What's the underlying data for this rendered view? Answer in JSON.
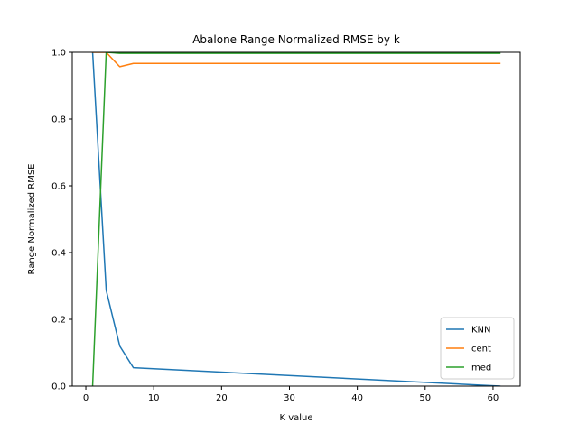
{
  "chart_data": {
    "type": "line",
    "title": "Abalone Range Normalized RMSE by k",
    "xlabel": "K value",
    "ylabel": "Range Normalized RMSE",
    "xlim": [
      -2,
      64
    ],
    "ylim": [
      0,
      1.0
    ],
    "xticks": [
      0,
      10,
      20,
      30,
      40,
      50,
      60
    ],
    "yticks": [
      0.0,
      0.2,
      0.4,
      0.6,
      0.8,
      1.0
    ],
    "xtick_labels": [
      "0",
      "10",
      "20",
      "30",
      "40",
      "50",
      "60"
    ],
    "ytick_labels": [
      "0.0",
      "0.2",
      "0.4",
      "0.6",
      "0.8",
      "1.0"
    ],
    "grid": false,
    "legend_position": "lower-right",
    "series": [
      {
        "name": "KNN",
        "color": "#1f77b4",
        "x": [
          1,
          3,
          5,
          7,
          61
        ],
        "y": [
          1.0,
          0.287,
          0.12,
          0.055,
          0.0
        ]
      },
      {
        "name": "cent",
        "color": "#ff7f0e",
        "x": [
          1,
          3,
          5,
          7,
          61
        ],
        "y": [
          1.0,
          1.0,
          0.957,
          0.967,
          0.967
        ]
      },
      {
        "name": "med",
        "color": "#2ca02c",
        "x": [
          1,
          3,
          5,
          7,
          61
        ],
        "y": [
          0.0,
          1.0,
          0.997,
          0.997,
          0.997
        ]
      }
    ]
  }
}
